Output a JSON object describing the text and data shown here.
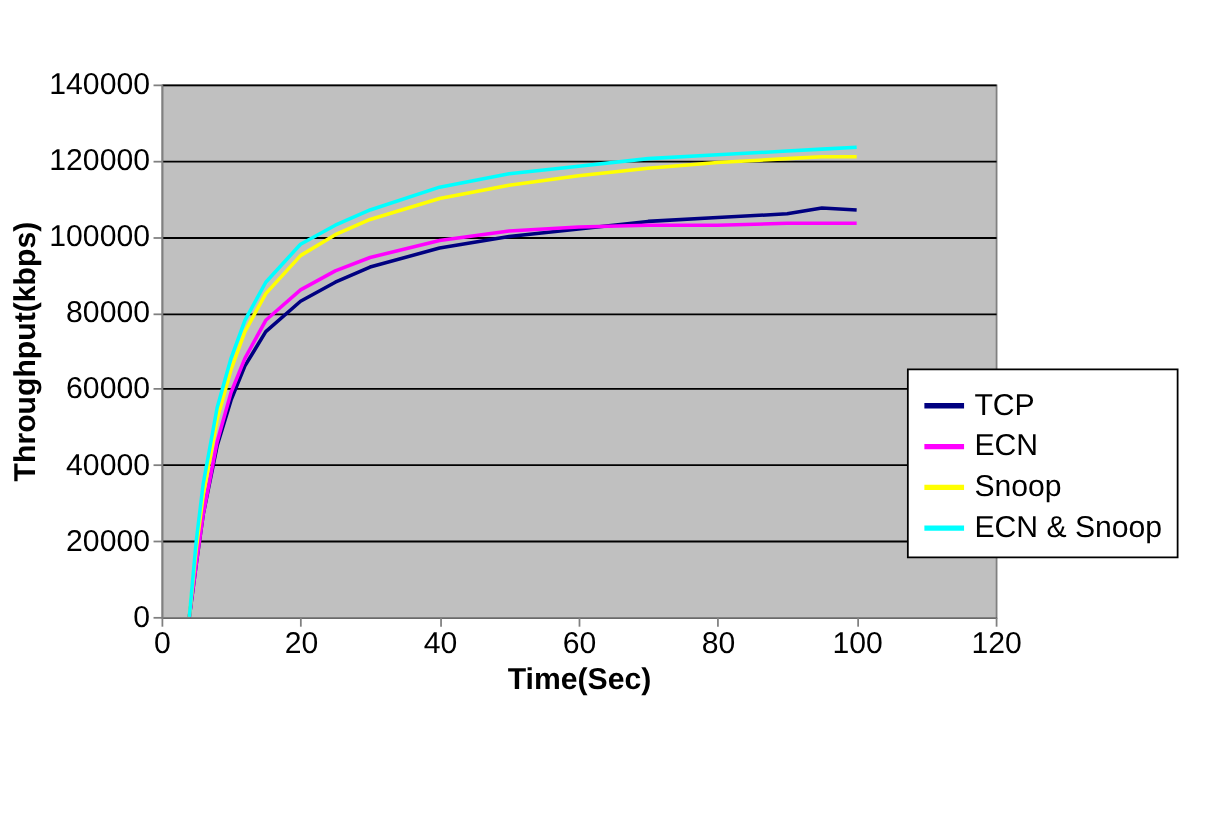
{
  "chart_data": {
    "type": "line",
    "xlabel": "Time(Sec)",
    "ylabel": "Throughput(kbps)",
    "x": [
      4,
      5,
      6,
      8,
      10,
      12,
      15,
      20,
      25,
      30,
      40,
      50,
      60,
      70,
      80,
      90,
      95,
      100
    ],
    "series": [
      {
        "name": "TCP",
        "color": "#000080",
        "values": [
          0,
          14000,
          27000,
          45000,
          57000,
          66000,
          75000,
          83000,
          88000,
          92000,
          97000,
          100000,
          102000,
          104000,
          105000,
          106000,
          107500,
          107000
        ]
      },
      {
        "name": "ECN",
        "color": "#ff00ff",
        "values": [
          0,
          14000,
          27000,
          46000,
          59000,
          68000,
          78000,
          86000,
          91000,
          94500,
          99000,
          101500,
          102500,
          103000,
          103000,
          103500,
          103500,
          103500
        ]
      },
      {
        "name": "Snoop",
        "color": "#ffff00",
        "values": [
          0,
          18000,
          32000,
          52000,
          65000,
          75000,
          85000,
          95000,
          100500,
          104500,
          110000,
          113500,
          116000,
          118000,
          119500,
          120500,
          121000,
          121000
        ]
      },
      {
        "name": "ECN & Snoop",
        "color": "#00ffff",
        "values": [
          0,
          20000,
          35000,
          55000,
          68000,
          78000,
          88000,
          98000,
          103000,
          107000,
          113000,
          116500,
          118500,
          120500,
          121500,
          122500,
          123000,
          123500
        ]
      }
    ],
    "xlim": [
      0,
      120
    ],
    "xticks": [
      0,
      20,
      40,
      60,
      80,
      100,
      120
    ],
    "ylim": [
      0,
      140000
    ],
    "yticks": [
      0,
      20000,
      40000,
      60000,
      80000,
      100000,
      120000,
      140000
    ],
    "grid": "y",
    "legend": "right",
    "marker": "none",
    "line_style": "solid"
  }
}
